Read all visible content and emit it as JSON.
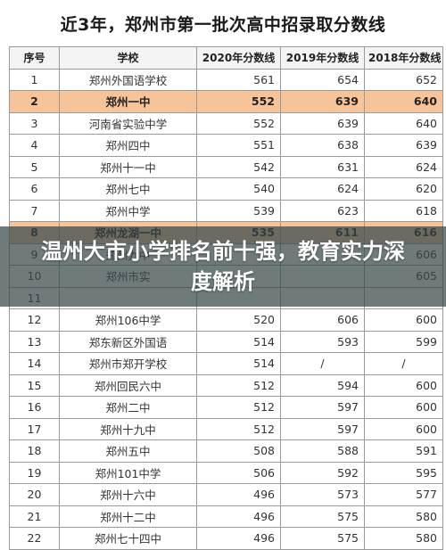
{
  "title": "近3年，郑州市第一批次高中招录取分数线",
  "overlay_title": "温州大市小学排名前十强，教育实力深度解析",
  "headers": [
    "序号",
    "学校",
    "2020年分数线",
    "2019年分数线",
    "2018年分数线"
  ],
  "highlight_color": "#f7c49a",
  "rows": [
    {
      "no": "1",
      "school": "郑州外国语学校",
      "y2020": "561",
      "y2019": "654",
      "y2018": "652",
      "hl": false
    },
    {
      "no": "2",
      "school": "郑州一中",
      "y2020": "552",
      "y2019": "639",
      "y2018": "640",
      "hl": true
    },
    {
      "no": "3",
      "school": "河南省实验中学",
      "y2020": "552",
      "y2019": "639",
      "y2018": "640",
      "hl": false
    },
    {
      "no": "4",
      "school": "郑州四中",
      "y2020": "551",
      "y2019": "638",
      "y2018": "639",
      "hl": false
    },
    {
      "no": "5",
      "school": "郑州十一中",
      "y2020": "542",
      "y2019": "631",
      "y2018": "624",
      "hl": false
    },
    {
      "no": "6",
      "school": "郑州七中",
      "y2020": "540",
      "y2019": "624",
      "y2018": "620",
      "hl": false
    },
    {
      "no": "7",
      "school": "郑州中学",
      "y2020": "539",
      "y2019": "623",
      "y2018": "618",
      "hl": false
    },
    {
      "no": "8",
      "school": "郑州龙湖一中",
      "y2020": "535",
      "y2019": "611",
      "y2018": "616",
      "hl": true
    },
    {
      "no": "9",
      "school": "郑州九中",
      "y2020": "",
      "y2019": "",
      "y2018": "606",
      "hl": false
    },
    {
      "no": "10",
      "school": "郑州市实",
      "y2020": "",
      "y2019": "",
      "y2018": "605",
      "hl": false
    },
    {
      "no": "11",
      "school": "",
      "y2020": "",
      "y2019": "",
      "y2018": "",
      "hl": false
    },
    {
      "no": "12",
      "school": "郑州106中学",
      "y2020": "520",
      "y2019": "606",
      "y2018": "600",
      "hl": false
    },
    {
      "no": "13",
      "school": "郑东新区外国语",
      "y2020": "514",
      "y2019": "593",
      "y2018": "599",
      "hl": false
    },
    {
      "no": "14",
      "school": "郑州市郑开学校",
      "y2020": "514",
      "y2019": "/",
      "y2018": "/",
      "hl": false
    },
    {
      "no": "15",
      "school": "郑州回民六中",
      "y2020": "512",
      "y2019": "594",
      "y2018": "600",
      "hl": false
    },
    {
      "no": "16",
      "school": "郑州二中",
      "y2020": "512",
      "y2019": "597",
      "y2018": "600",
      "hl": false
    },
    {
      "no": "17",
      "school": "郑州十九中",
      "y2020": "512",
      "y2019": "597",
      "y2018": "600",
      "hl": false
    },
    {
      "no": "18",
      "school": "郑州五中",
      "y2020": "508",
      "y2019": "588",
      "y2018": "591",
      "hl": false
    },
    {
      "no": "19",
      "school": "郑州101中学",
      "y2020": "506",
      "y2019": "592",
      "y2018": "595",
      "hl": false
    },
    {
      "no": "20",
      "school": "郑州十六中",
      "y2020": "496",
      "y2019": "573",
      "y2018": "577",
      "hl": false
    },
    {
      "no": "21",
      "school": "郑州十二中",
      "y2020": "496",
      "y2019": "575",
      "y2018": "580",
      "hl": false
    },
    {
      "no": "22",
      "school": "郑州七十四中",
      "y2020": "496",
      "y2019": "575",
      "y2018": "580",
      "hl": false
    }
  ]
}
